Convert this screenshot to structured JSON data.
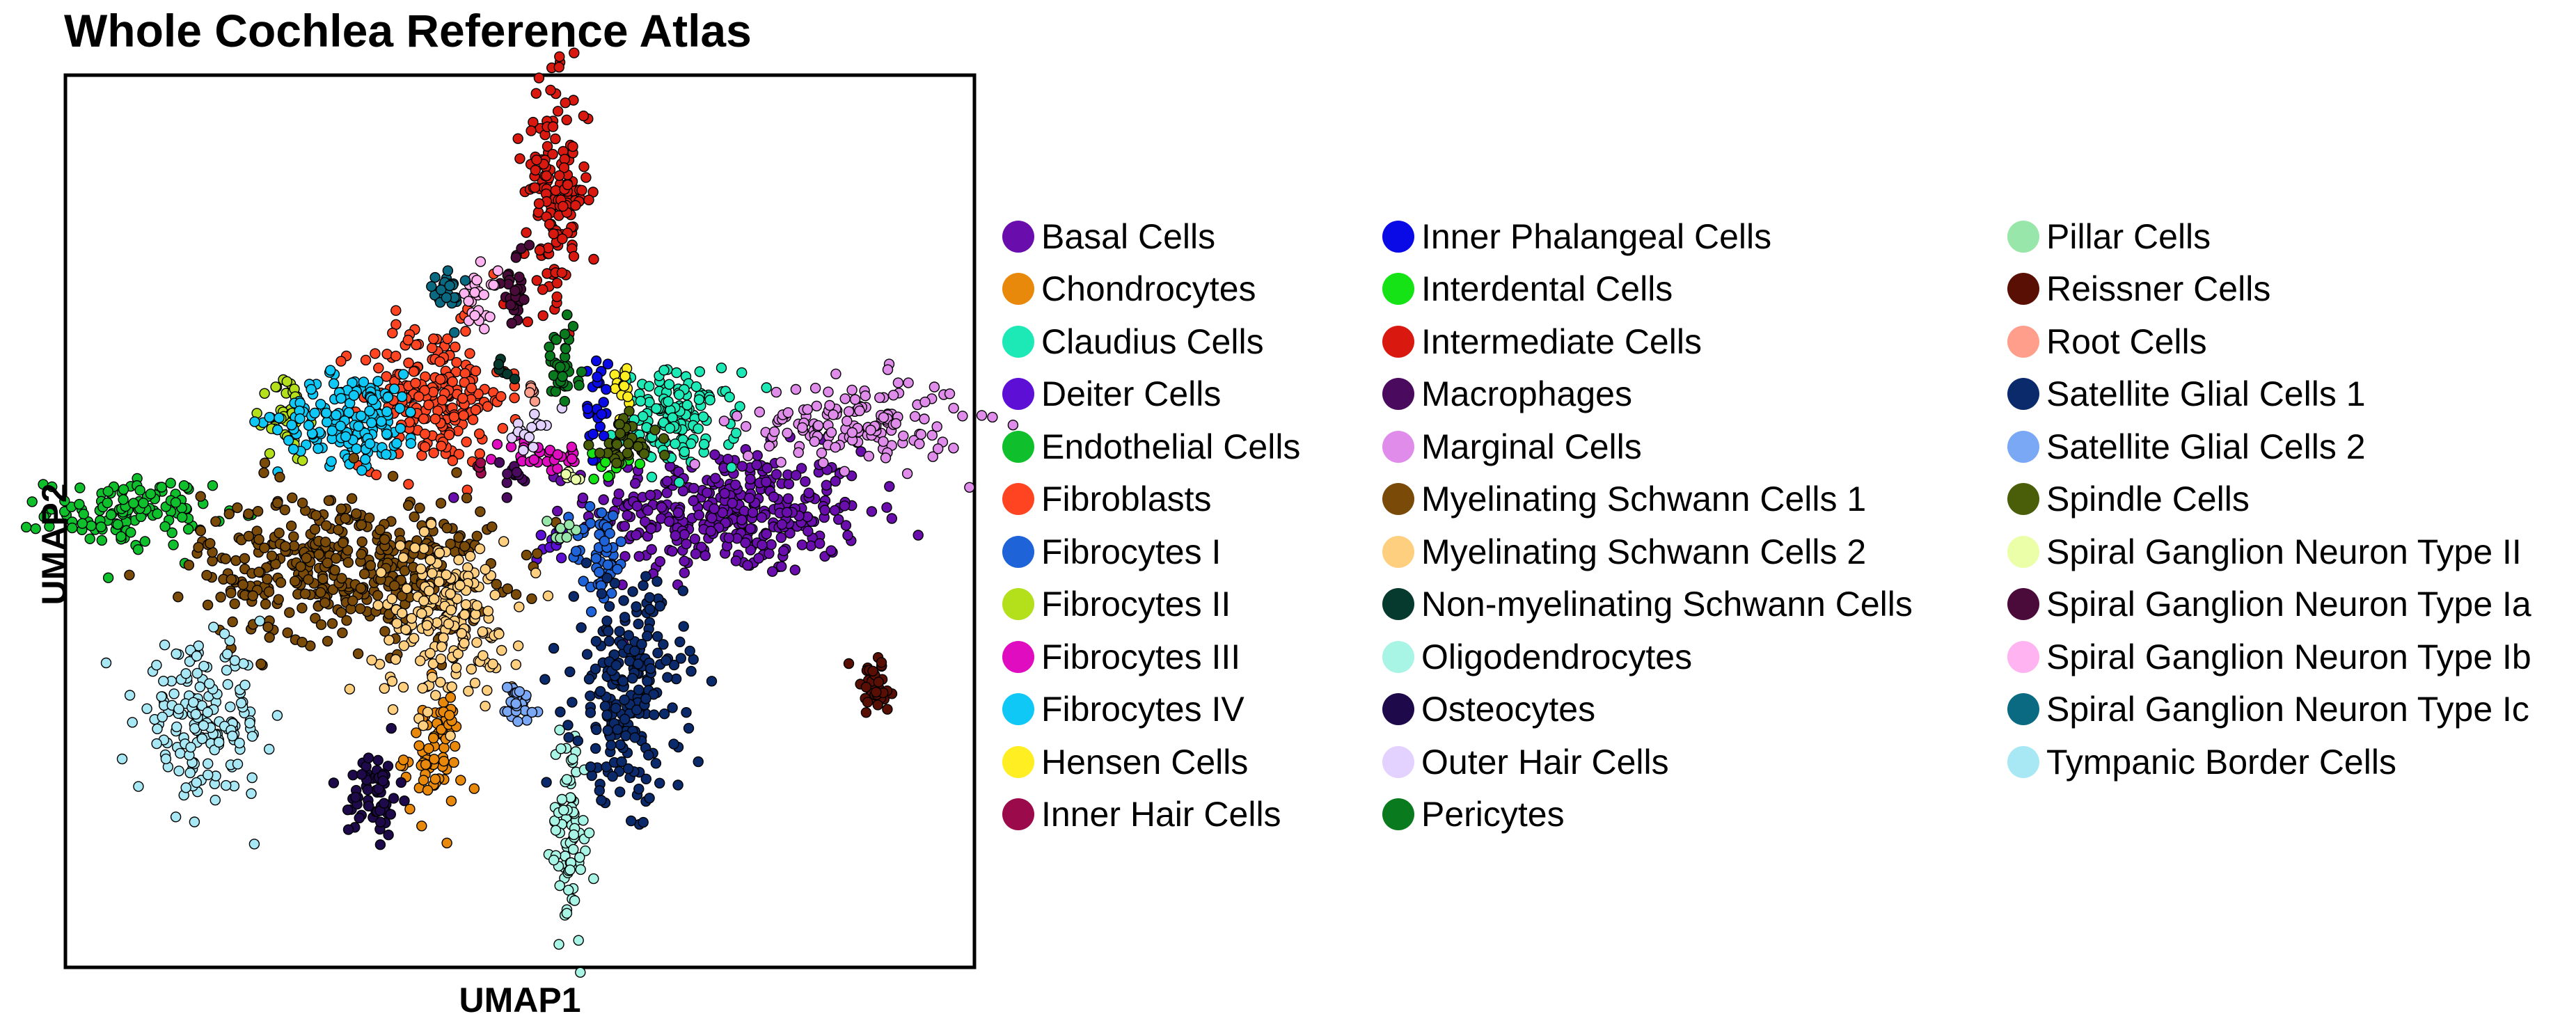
{
  "chart_data": {
    "type": "scatter",
    "title": "Whole Cochlea Reference Atlas",
    "xlabel": "UMAP1",
    "ylabel": "UMAP2",
    "xlim": [
      0,
      100
    ],
    "ylim": [
      0,
      100
    ],
    "grid": false,
    "axis_ticks": false,
    "legend_position": "right",
    "series": [
      {
        "name": "Basal Cells",
        "color": "#6A0DAD",
        "cluster": {
          "cx": 73,
          "cy": 51,
          "sx": 7.5,
          "sy": 3.5,
          "n": 360
        }
      },
      {
        "name": "Chondrocytes",
        "color": "#E8890C",
        "cluster": {
          "cx": 40.5,
          "cy": 24,
          "sx": 1.6,
          "sy": 3.5,
          "n": 70
        }
      },
      {
        "name": "Claudius Cells",
        "color": "#1DE9B6",
        "cluster": {
          "cx": 67.5,
          "cy": 61.5,
          "sx": 3.2,
          "sy": 2.6,
          "n": 130
        }
      },
      {
        "name": "Deiter Cells",
        "color": "#5E0FD6",
        "cluster": {
          "cx": 53.5,
          "cy": 48,
          "sx": 0.8,
          "sy": 1.2,
          "n": 12
        }
      },
      {
        "name": "Endothelial Cells",
        "color": "#0FBF2C",
        "cluster": {
          "cx": 7,
          "cy": 51,
          "sx": 4.5,
          "sy": 1.9,
          "n": 120
        }
      },
      {
        "name": "Fibroblasts",
        "color": "#FF4422",
        "cluster": {
          "cx": 40.5,
          "cy": 64,
          "sx": 4,
          "sy": 4,
          "n": 210
        }
      },
      {
        "name": "Fibrocytes I",
        "color": "#1F63D9",
        "cluster": {
          "cx": 59,
          "cy": 46.5,
          "sx": 1.6,
          "sy": 3,
          "n": 50
        }
      },
      {
        "name": "Fibrocytes II",
        "color": "#B3E01A",
        "cluster": {
          "cx": 24.5,
          "cy": 61.5,
          "sx": 1.1,
          "sy": 2.5,
          "n": 45
        }
      },
      {
        "name": "Fibrocytes III",
        "color": "#E00CBF",
        "cluster": {
          "cx": 52.5,
          "cy": 57.5,
          "sx": 2.5,
          "sy": 1,
          "n": 30
        }
      },
      {
        "name": "Fibrocytes IV",
        "color": "#10C8F5",
        "cluster": {
          "cx": 31.5,
          "cy": 61.5,
          "sx": 4,
          "sy": 2.5,
          "n": 170
        }
      },
      {
        "name": "Hensen Cells",
        "color": "#FFEE22",
        "cluster": {
          "cx": 61.5,
          "cy": 65,
          "sx": 0.6,
          "sy": 1.8,
          "n": 15
        }
      },
      {
        "name": "Inner Hair Cells",
        "color": "#9B0A4A",
        "cluster": {
          "cx": 45.5,
          "cy": 56,
          "sx": 0.6,
          "sy": 0.6,
          "n": 5
        }
      },
      {
        "name": "Inner Phalangeal Cells",
        "color": "#0A0AE6",
        "cluster": {
          "cx": 58.5,
          "cy": 63,
          "sx": 0.6,
          "sy": 3,
          "n": 25
        }
      },
      {
        "name": "Interdental Cells",
        "color": "#15E315",
        "cluster": {
          "cx": 60,
          "cy": 56,
          "sx": 1,
          "sy": 1,
          "n": 10
        }
      },
      {
        "name": "Intermediate Cells",
        "color": "#D9190F",
        "cluster": {
          "cx": 54,
          "cy": 87,
          "sx": 1.8,
          "sy": 6,
          "n": 150
        }
      },
      {
        "name": "Macrophages",
        "color": "#4A0A5E",
        "cluster": {
          "cx": 49,
          "cy": 55,
          "sx": 1,
          "sy": 1,
          "n": 12
        }
      },
      {
        "name": "Marginal Cells",
        "color": "#E08CEB",
        "cluster": {
          "cx": 87,
          "cy": 61,
          "sx": 6,
          "sy": 2.5,
          "n": 150
        }
      },
      {
        "name": "Myelinating Schwann Cells 1",
        "color": "#7A4A08",
        "cluster": {
          "cx": 31,
          "cy": 45,
          "sx": 8,
          "sy": 4.2,
          "n": 420
        }
      },
      {
        "name": "Myelinating Schwann Cells 2",
        "color": "#FFCF80",
        "cluster": {
          "cx": 42,
          "cy": 39,
          "sx": 4,
          "sy": 4.5,
          "n": 180
        }
      },
      {
        "name": "Non-myelinating Schwann Cells",
        "color": "#063A2E",
        "cluster": {
          "cx": 48.5,
          "cy": 67.5,
          "sx": 0.6,
          "sy": 0.8,
          "n": 6
        }
      },
      {
        "name": "Oligodendrocytes",
        "color": "#A8F5E6",
        "cluster": {
          "cx": 55.5,
          "cy": 15,
          "sx": 1,
          "sy": 6,
          "n": 80
        }
      },
      {
        "name": "Osteocytes",
        "color": "#1E0A4A",
        "cluster": {
          "cx": 34,
          "cy": 19.5,
          "sx": 1.4,
          "sy": 2.5,
          "n": 60
        }
      },
      {
        "name": "Outer Hair Cells",
        "color": "#E3D1FF",
        "cluster": {
          "cx": 51,
          "cy": 60.5,
          "sx": 1,
          "sy": 1,
          "n": 15
        }
      },
      {
        "name": "Pericytes",
        "color": "#0A7A1E",
        "cluster": {
          "cx": 54.5,
          "cy": 67,
          "sx": 1,
          "sy": 2.2,
          "n": 35
        }
      },
      {
        "name": "Pillar Cells",
        "color": "#99E6AA",
        "cluster": {
          "cx": 54.5,
          "cy": 48.5,
          "sx": 1,
          "sy": 1,
          "n": 8
        }
      },
      {
        "name": "Reissner Cells",
        "color": "#5A0F05",
        "cluster": {
          "cx": 89,
          "cy": 31.5,
          "sx": 1.3,
          "sy": 1.6,
          "n": 45
        }
      },
      {
        "name": "Root Cells",
        "color": "#FF9E8A",
        "cluster": {
          "cx": 51.5,
          "cy": 64.5,
          "sx": 0.8,
          "sy": 0.8,
          "n": 6
        }
      },
      {
        "name": "Satellite Glial Cells 1",
        "color": "#0A2A6B",
        "cluster": {
          "cx": 62,
          "cy": 31,
          "sx": 3,
          "sy": 6,
          "n": 220
        }
      },
      {
        "name": "Satellite Glial Cells 2",
        "color": "#7AA8F5",
        "cluster": {
          "cx": 49.5,
          "cy": 29.5,
          "sx": 1.1,
          "sy": 1.5,
          "n": 35
        }
      },
      {
        "name": "Spindle Cells",
        "color": "#4A5E0A",
        "cluster": {
          "cx": 61.5,
          "cy": 58.5,
          "sx": 1.8,
          "sy": 1.5,
          "n": 40
        }
      },
      {
        "name": "Spiral Ganglion Neuron Type II",
        "color": "#EAFFA8",
        "cluster": {
          "cx": 56,
          "cy": 55.5,
          "sx": 0.8,
          "sy": 0.8,
          "n": 6
        }
      },
      {
        "name": "Spiral Ganglion Neuron Type Ia",
        "color": "#4A0A3A",
        "cluster": {
          "cx": 49.5,
          "cy": 76,
          "sx": 0.8,
          "sy": 2.2,
          "n": 30
        }
      },
      {
        "name": "Spiral Ganglion Neuron Type Ib",
        "color": "#FFB3F0",
        "cluster": {
          "cx": 45.5,
          "cy": 75,
          "sx": 1,
          "sy": 1.6,
          "n": 25
        }
      },
      {
        "name": "Spiral Ganglion Neuron Type Ic",
        "color": "#0A6A82",
        "cluster": {
          "cx": 42,
          "cy": 75.5,
          "sx": 0.9,
          "sy": 1.4,
          "n": 25
        }
      },
      {
        "name": "Tympanic Border Cells",
        "color": "#A8E8F5",
        "cluster": {
          "cx": 15,
          "cy": 27.5,
          "sx": 3.5,
          "sy": 4,
          "n": 170
        }
      }
    ]
  }
}
